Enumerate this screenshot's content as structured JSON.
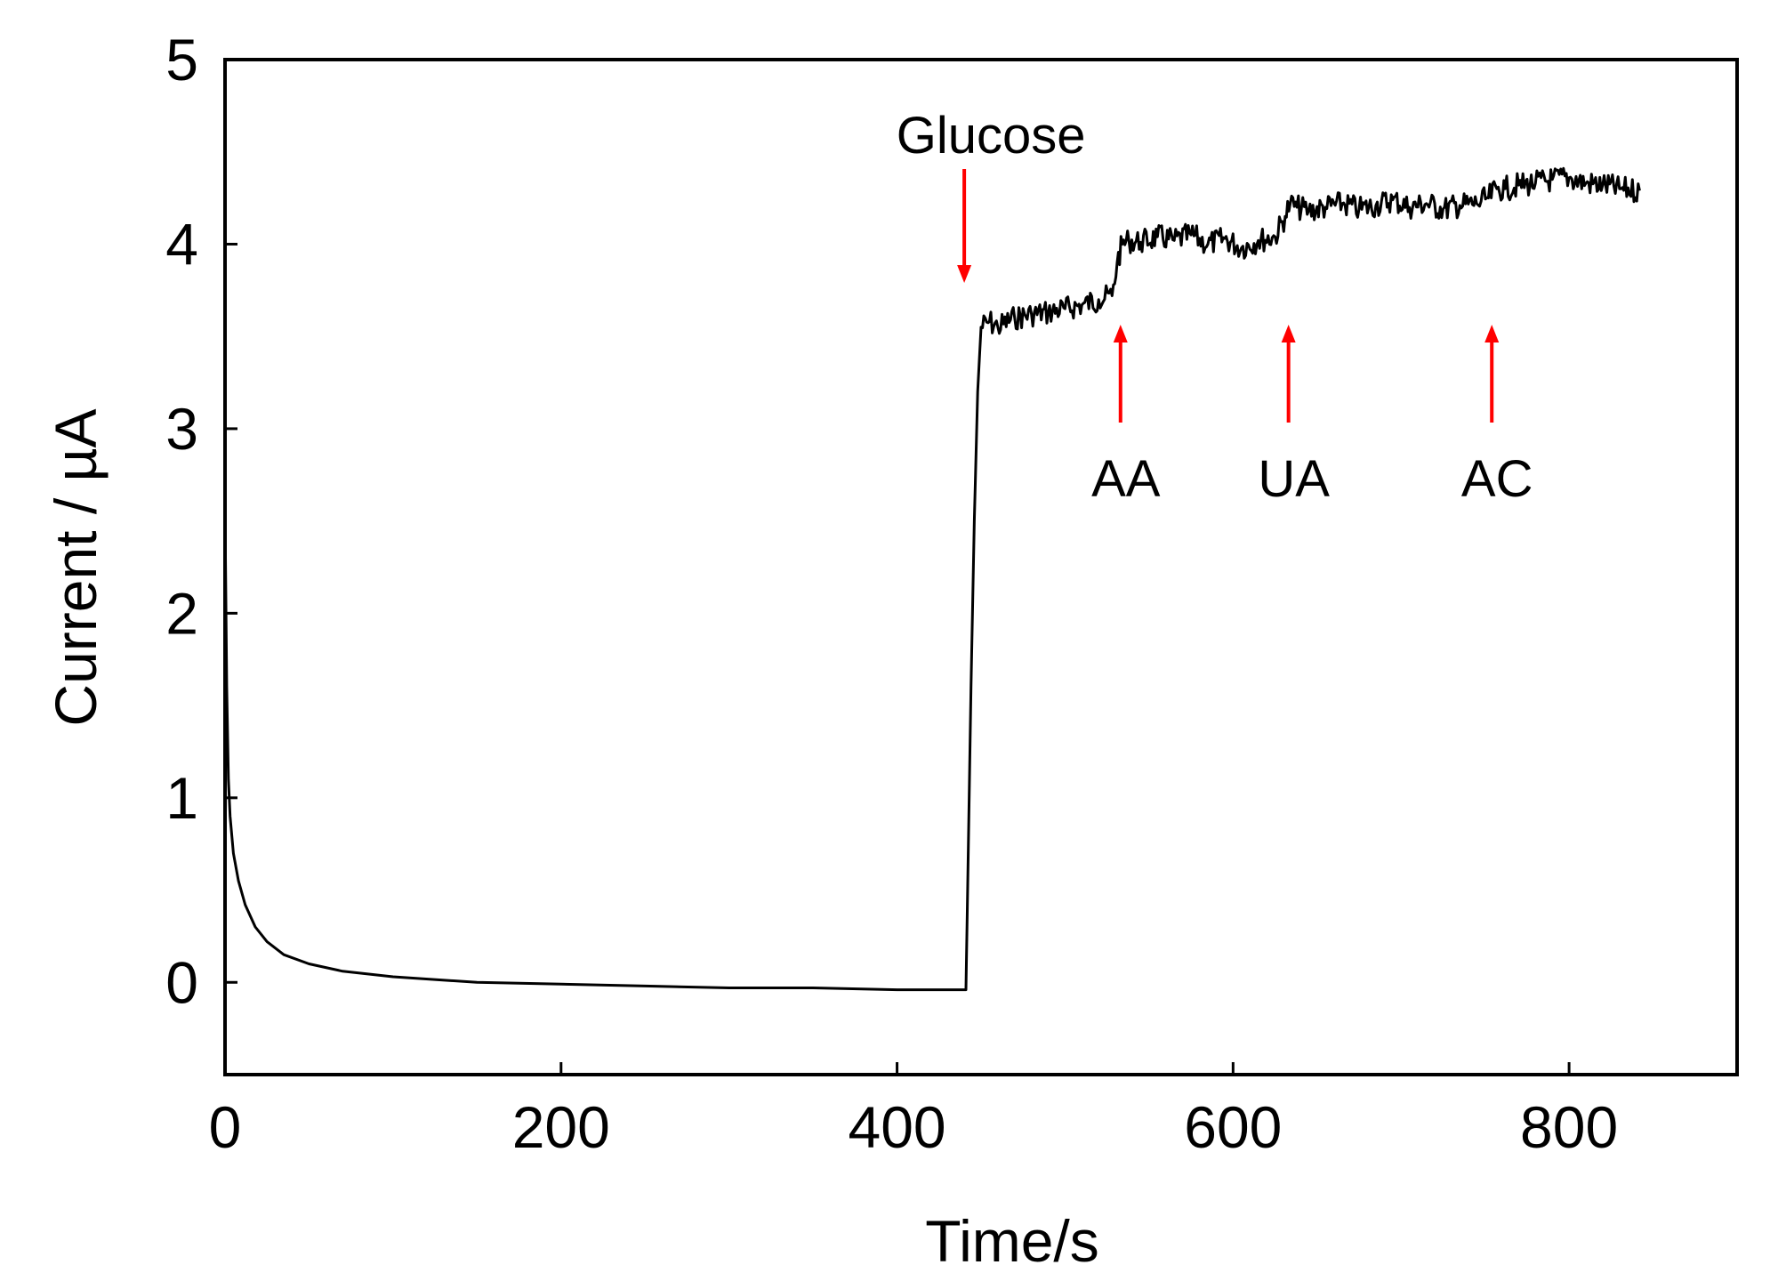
{
  "chart_data": {
    "type": "line",
    "title": "",
    "xlabel": "Time/s",
    "ylabel": "Current / µA",
    "xlim": [
      0,
      900
    ],
    "ylim": [
      -0.5,
      5
    ],
    "xticks": [
      0,
      200,
      400,
      600,
      800
    ],
    "yticks": [
      0,
      1,
      2,
      3,
      4,
      5
    ],
    "xtick_labels": [
      "0",
      "200",
      "400",
      "600",
      "800"
    ],
    "ytick_labels": [
      "0",
      "1",
      "2",
      "3",
      "4",
      "5"
    ],
    "grid": false,
    "line_color": "#000000",
    "annotation_color": "#ff0000",
    "series": [
      {
        "x": [
          0,
          1,
          2,
          3,
          5,
          8,
          12,
          18,
          25,
          35,
          50,
          70,
          100,
          150,
          200,
          250,
          300,
          350,
          400,
          430,
          441,
          442,
          444,
          446,
          448,
          450,
          455,
          460,
          470,
          480,
          490,
          500,
          510,
          520,
          528,
          531,
          534,
          538,
          545,
          555,
          565,
          575,
          585,
          595,
          605,
          615,
          625,
          631,
          634,
          638,
          645,
          655,
          665,
          675,
          685,
          695,
          705,
          715,
          725,
          735,
          745,
          752,
          757,
          762,
          770,
          780,
          790,
          800,
          810,
          820,
          830,
          842
        ],
        "y": [
          2.55,
          1.6,
          1.1,
          0.9,
          0.7,
          0.55,
          0.42,
          0.3,
          0.22,
          0.15,
          0.1,
          0.06,
          0.03,
          0.0,
          -0.01,
          -0.02,
          -0.03,
          -0.03,
          -0.04,
          -0.04,
          -0.04,
          0.5,
          1.6,
          2.5,
          3.2,
          3.55,
          3.58,
          3.55,
          3.6,
          3.62,
          3.63,
          3.65,
          3.67,
          3.7,
          3.72,
          3.9,
          4.0,
          4.02,
          4.01,
          4.04,
          4.02,
          4.05,
          4.0,
          4.03,
          3.98,
          4.02,
          4.04,
          4.15,
          4.22,
          4.2,
          4.18,
          4.2,
          4.22,
          4.19,
          4.21,
          4.24,
          4.2,
          4.22,
          4.19,
          4.21,
          4.22,
          4.25,
          4.3,
          4.3,
          4.32,
          4.33,
          4.35,
          4.36,
          4.33,
          4.32,
          4.3,
          4.29
        ]
      }
    ],
    "annotations": [
      {
        "label": "Glucose",
        "x": 440,
        "arrow": "down"
      },
      {
        "label": "AA",
        "x": 533,
        "arrow": "up"
      },
      {
        "label": "UA",
        "x": 633,
        "arrow": "up"
      },
      {
        "label": "AC",
        "x": 754,
        "arrow": "up"
      }
    ]
  }
}
